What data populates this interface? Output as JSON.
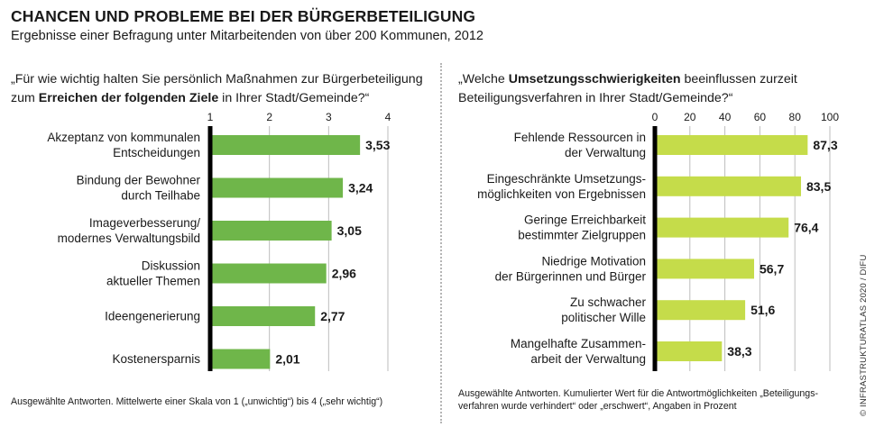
{
  "header": {
    "title": "CHANCEN UND PROBLEME BEI DER BÜRGERBETEILIGUNG",
    "subtitle": "Ergebnisse einer Befragung unter Mitarbeitenden von über 200 Kommunen, 2012"
  },
  "left": {
    "question_line1": "„Für wie wichtig halten Sie persönlich Maßnahmen zur Bürgerbeteiligung",
    "question_line2_pre": "zum ",
    "question_line2_bold": "Erreichen der folgenden Ziele",
    "question_line2_post": " in Ihrer Stadt/Gemeinde?“",
    "note": "Ausgewählte Antworten. Mittelwerte einer Skala von 1 („unwichtig“) bis 4 („sehr wichtig“)"
  },
  "right": {
    "question_line1_pre": "„Welche ",
    "question_line1_bold": "Umsetzungsschwierigkeiten",
    "question_line1_post": " beeinflussen zurzeit",
    "question_line2": "Beteiligungsverfahren in Ihrer Stadt/Gemeinde?“",
    "note_line1": "Ausgewählte Antworten. Kumulierter Wert für die Antwortmöglichkeiten „Beteiligungs-",
    "note_line2": "verfahren wurde verhindert“ oder „erschwert“, Angaben in Prozent"
  },
  "credit": "© INFRASTRUKTURATLAS 2020 / DIFU",
  "colors": {
    "left_bar": "#6fb64a",
    "right_bar": "#c5dc4a",
    "axis": "#000000",
    "gridline": "#bdbdbd"
  },
  "chart_data": [
    {
      "type": "bar",
      "orientation": "horizontal",
      "xlim": [
        1,
        4
      ],
      "ticks": [
        "1",
        "2",
        "3",
        "4"
      ],
      "tick_values": [
        1,
        2,
        3,
        4
      ],
      "grid": true,
      "categories": [
        [
          "Akzeptanz von kommunalen",
          "Entscheidungen"
        ],
        [
          "Bindung der Bewohner",
          "durch Teilhabe"
        ],
        [
          "Imageverbesserung/",
          "modernes Verwaltungsbild"
        ],
        [
          "Diskussion",
          "aktueller Themen"
        ],
        [
          "Ideengenerierung"
        ],
        [
          "Kostenersparnis"
        ]
      ],
      "values": [
        3.53,
        3.24,
        3.05,
        2.96,
        2.77,
        2.01
      ],
      "value_labels": [
        "3,53",
        "3,24",
        "3,05",
        "2,96",
        "2,77",
        "2,01"
      ]
    },
    {
      "type": "bar",
      "orientation": "horizontal",
      "xlim": [
        0,
        100
      ],
      "ticks": [
        "0",
        "20",
        "40",
        "60",
        "80",
        "100"
      ],
      "tick_values": [
        0,
        20,
        40,
        60,
        80,
        100
      ],
      "grid": true,
      "categories": [
        [
          "Fehlende Ressourcen in",
          "der Verwaltung"
        ],
        [
          "Eingeschränkte Umsetzungs-",
          "möglichkeiten von Ergebnissen"
        ],
        [
          "Geringe Erreichbarkeit",
          "bestimmter Zielgruppen"
        ],
        [
          "Niedrige Motivation",
          "der Bürgerinnen und Bürger"
        ],
        [
          "Zu schwacher",
          "politischer Wille"
        ],
        [
          "Mangelhafte Zusammen-",
          "arbeit der Verwaltung"
        ]
      ],
      "values": [
        87.3,
        83.5,
        76.4,
        56.7,
        51.6,
        38.3
      ],
      "value_labels": [
        "87,3",
        "83,5",
        "76,4",
        "56,7",
        "51,6",
        "38,3"
      ]
    }
  ]
}
